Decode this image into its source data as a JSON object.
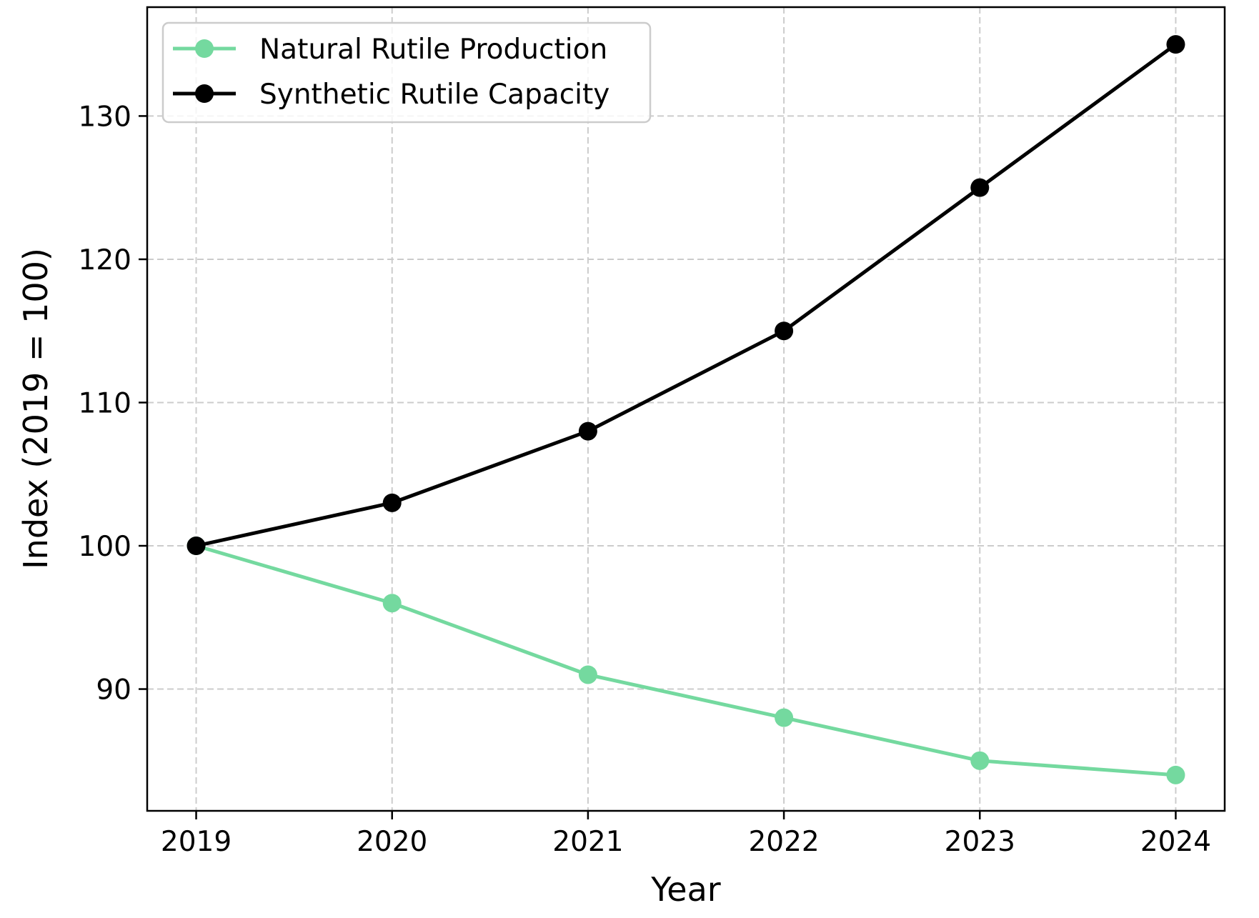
{
  "chart_data": {
    "type": "line",
    "title": "",
    "xlabel": "Year",
    "ylabel": "Index (2019 = 100)",
    "x": [
      "2019",
      "2020",
      "2021",
      "2022",
      "2023",
      "2024"
    ],
    "xlim": [
      2018.75,
      2024.25
    ],
    "ylim": [
      81.5,
      137.6
    ],
    "yticks": [
      90,
      100,
      110,
      120,
      130
    ],
    "grid": true,
    "legend_position": "top-left",
    "series": [
      {
        "name": "Natural Rutile Production",
        "color": "#74d99f",
        "marker": "circle",
        "values": [
          100,
          96,
          91,
          88,
          85,
          84
        ]
      },
      {
        "name": "Synthetic Rutile Capacity",
        "color": "#000000",
        "marker": "circle",
        "values": [
          100,
          103,
          108,
          115,
          125,
          135
        ]
      }
    ]
  }
}
